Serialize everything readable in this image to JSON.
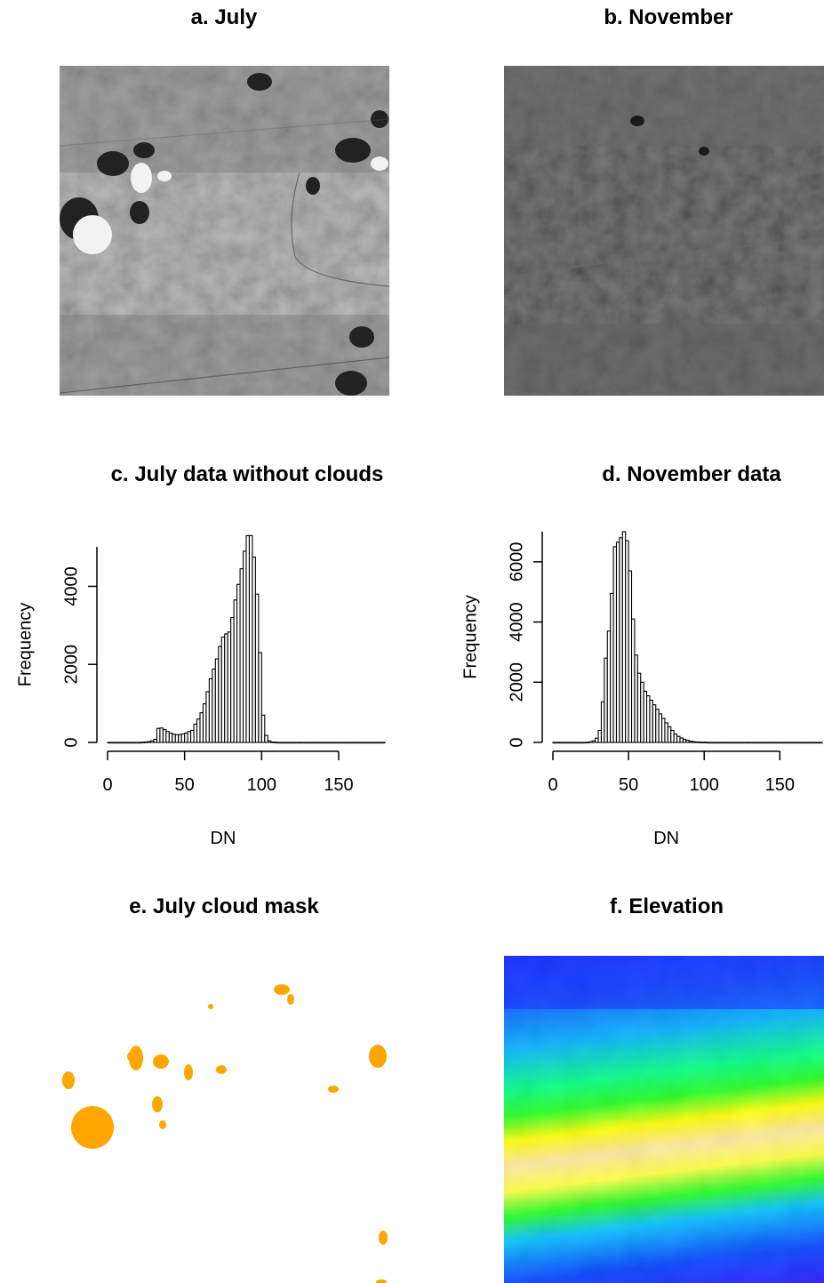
{
  "panels": {
    "a": {
      "title": "a. July"
    },
    "b": {
      "title": "b. November"
    },
    "c": {
      "title": "c. July data without clouds"
    },
    "d": {
      "title": "d. November data"
    },
    "e": {
      "title": "e. July cloud mask"
    },
    "f": {
      "title": "f. Elevation"
    }
  },
  "colors": {
    "cloud_mask": "#FFA500",
    "bar_fill": "#ffffff",
    "bar_stroke": "#000000",
    "elevation_ramp": [
      "#7a00ff",
      "#0000ff",
      "#0a55ff",
      "#00b0ff",
      "#00ff80",
      "#20ff20",
      "#ffff00",
      "#ffe8a0",
      "#fff2cc"
    ]
  },
  "chart_data": [
    {
      "type": "bar",
      "title": "c. July data without clouds",
      "xlabel": "DN",
      "ylabel": "Frequency",
      "x_ticks": [
        0,
        50,
        100,
        150
      ],
      "y_ticks": [
        0,
        2000,
        4000
      ],
      "xlim": [
        0,
        180
      ],
      "ylim": [
        0,
        5400
      ],
      "bin_width": 2,
      "bin_start": 0,
      "values": [
        0,
        0,
        0,
        0,
        0,
        0,
        0,
        0,
        0,
        0,
        0,
        5,
        10,
        20,
        40,
        80,
        360,
        370,
        330,
        280,
        240,
        210,
        200,
        200,
        215,
        240,
        280,
        310,
        470,
        600,
        760,
        990,
        1300,
        1630,
        1880,
        2140,
        2460,
        2700,
        2780,
        2830,
        3200,
        3650,
        4050,
        4450,
        4900,
        5300,
        5300,
        4750,
        3800,
        2300,
        700,
        180,
        40,
        10,
        5,
        0,
        0,
        0,
        0,
        0,
        0,
        0,
        0,
        0,
        0,
        0,
        0,
        0,
        0,
        0,
        0,
        0,
        0,
        0,
        0,
        0,
        0,
        0,
        0,
        0,
        0,
        0,
        0,
        0,
        0,
        0,
        0,
        0,
        0,
        0
      ]
    },
    {
      "type": "bar",
      "title": "d. November data",
      "xlabel": "DN",
      "ylabel": "Frequency",
      "x_ticks": [
        0,
        50,
        100,
        150
      ],
      "y_ticks": [
        0,
        2000,
        4000,
        6000
      ],
      "xlim": [
        0,
        178
      ],
      "ylim": [
        0,
        7000
      ],
      "bin_width": 2,
      "bin_start": 0,
      "values": [
        0,
        0,
        0,
        0,
        0,
        0,
        0,
        0,
        0,
        0,
        0,
        5,
        20,
        50,
        140,
        400,
        1350,
        2800,
        3700,
        4950,
        6500,
        6650,
        6800,
        7000,
        6700,
        5700,
        4100,
        2900,
        2300,
        2000,
        1700,
        1550,
        1400,
        1250,
        1100,
        950,
        800,
        650,
        520,
        400,
        280,
        200,
        150,
        100,
        70,
        40,
        25,
        15,
        10,
        5,
        5,
        0,
        0,
        0,
        0,
        0,
        0,
        0,
        0,
        0,
        0,
        0,
        0,
        0,
        0,
        0,
        0,
        0,
        0,
        0,
        0,
        0,
        0,
        0,
        0,
        0,
        0,
        0,
        0,
        0,
        0,
        0,
        0,
        0,
        0,
        0,
        0,
        0,
        0
      ]
    }
  ]
}
